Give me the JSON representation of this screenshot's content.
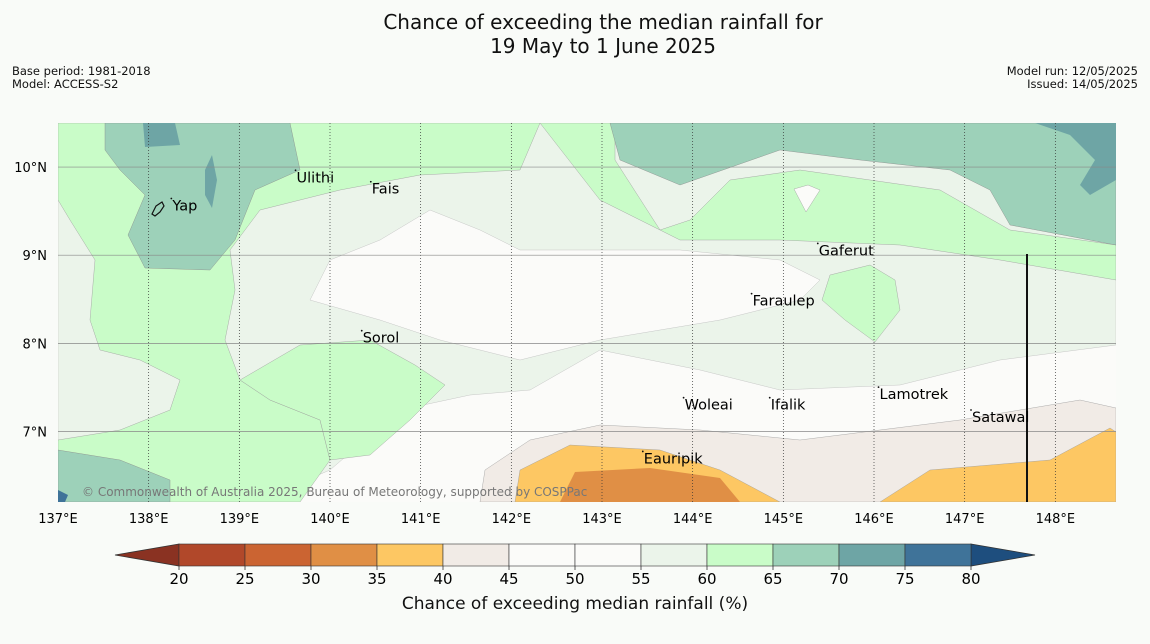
{
  "header": {
    "title_line1": "Chance of exceeding the median rainfall for",
    "title_line2": "19 May to 1 June 2025",
    "base_period": "Base period: 1981-2018",
    "model": "Model: ACCESS-S2",
    "model_run": "Model run: 12/05/2025",
    "issued": "Issued: 14/05/2025"
  },
  "map": {
    "lon_range": [
      137,
      149
    ],
    "lat_range": [
      6.2,
      10.5
    ],
    "lon_ticks": [
      {
        "value": 137,
        "label": "137°E"
      },
      {
        "value": 138,
        "label": "138°E"
      },
      {
        "value": 139,
        "label": "139°E"
      },
      {
        "value": 140,
        "label": "140°E"
      },
      {
        "value": 141,
        "label": "141°E"
      },
      {
        "value": 142,
        "label": "142°E"
      },
      {
        "value": 143,
        "label": "143°E"
      },
      {
        "value": 144,
        "label": "144°E"
      },
      {
        "value": 145,
        "label": "145°E"
      },
      {
        "value": 146,
        "label": "146°E"
      },
      {
        "value": 147,
        "label": "147°E"
      },
      {
        "value": 148,
        "label": "148°E"
      }
    ],
    "lat_ticks": [
      {
        "value": 10,
        "label": "10°N"
      },
      {
        "value": 9,
        "label": "9°N"
      },
      {
        "value": 8,
        "label": "8°N"
      },
      {
        "value": 7,
        "label": "7°N"
      }
    ],
    "places": [
      {
        "name": "Yap",
        "lon": 138.25,
        "lat": 9.53
      },
      {
        "name": "Ulithi",
        "lon": 139.62,
        "lat": 9.85
      },
      {
        "name": "Fais",
        "lon": 140.45,
        "lat": 9.72
      },
      {
        "name": "Gaferut",
        "lon": 145.38,
        "lat": 9.02
      },
      {
        "name": "Faraulep",
        "lon": 144.65,
        "lat": 8.45
      },
      {
        "name": "Sorol",
        "lon": 140.35,
        "lat": 8.03
      },
      {
        "name": "Woleai",
        "lon": 143.9,
        "lat": 7.27
      },
      {
        "name": "Ifalik",
        "lon": 144.85,
        "lat": 7.27
      },
      {
        "name": "Lamotrek",
        "lon": 146.05,
        "lat": 7.39
      },
      {
        "name": "Satawal",
        "lon": 147.07,
        "lat": 7.13
      },
      {
        "name": "Eauripik",
        "lon": 143.45,
        "lat": 6.66
      }
    ],
    "copyright": "© Commonwealth of Australia 2025, Bureau of Meteorology, supported by COSPPac"
  },
  "colorbar": {
    "ticks": [
      "20",
      "25",
      "30",
      "35",
      "40",
      "45",
      "50",
      "55",
      "60",
      "65",
      "70",
      "75",
      "80"
    ],
    "colors": [
      "#b1482a",
      "#cb6432",
      "#e08f45",
      "#fdc763",
      "#f1ebe6",
      "#fbfbf9",
      "#fbfbf9",
      "#ebf4ea",
      "#c9fcc8",
      "#9dd1b9",
      "#6ea5a5",
      "#3f7399"
    ],
    "under_color": "#8a3222",
    "over_color": "#1e4e7e",
    "label": "Chance of exceeding median rainfall (%)"
  }
}
